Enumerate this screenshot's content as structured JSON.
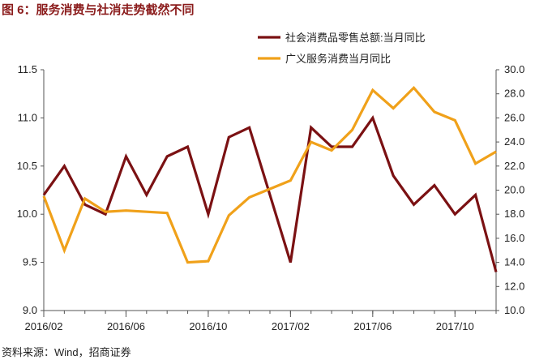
{
  "figure_title": "图 6：服务消费与社消走势截然不同",
  "source": "资料来源：Wind，招商证券",
  "chart_data": {
    "type": "line",
    "x": [
      "2016/02",
      "2016/03",
      "2016/04",
      "2016/05",
      "2016/06",
      "2016/07",
      "2016/08",
      "2016/09",
      "2016/10",
      "2016/11",
      "2016/12",
      "2017/01",
      "2017/02",
      "2017/03",
      "2017/04",
      "2017/05",
      "2017/06",
      "2017/07",
      "2017/08",
      "2017/09",
      "2017/10",
      "2017/11",
      "2017/12"
    ],
    "x_tick_labels": [
      "2016/02",
      "2016/06",
      "2016/10",
      "2017/02",
      "2017/06",
      "2017/10"
    ],
    "series": [
      {
        "name": "社会消费品零售总额:当月同比",
        "axis": "left",
        "color": "#7b1113",
        "values": [
          10.2,
          10.5,
          10.1,
          10.0,
          10.6,
          10.2,
          10.6,
          10.7,
          10.0,
          10.8,
          10.9,
          10.2,
          9.5,
          10.9,
          10.7,
          10.7,
          11.0,
          10.4,
          10.1,
          10.3,
          10.0,
          10.2,
          9.4
        ]
      },
      {
        "name": "广义服务消费当月同比",
        "axis": "right",
        "color": "#f0a11a",
        "values": [
          19.5,
          15.0,
          19.3,
          18.2,
          18.3,
          18.2,
          18.1,
          14.0,
          14.1,
          17.9,
          19.4,
          20.1,
          20.8,
          24.0,
          23.3,
          25.0,
          28.3,
          26.8,
          28.5,
          26.5,
          25.8,
          22.2,
          23.2
        ]
      }
    ],
    "left_axis": {
      "min": 9.0,
      "max": 11.5,
      "step": 0.5,
      "ticks": [
        "9.0",
        "9.5",
        "10.0",
        "10.5",
        "11.0",
        "11.5"
      ]
    },
    "right_axis": {
      "min": 10.0,
      "max": 30.0,
      "step": 2.0,
      "ticks": [
        "10.0",
        "12.0",
        "14.0",
        "16.0",
        "18.0",
        "20.0",
        "22.0",
        "24.0",
        "26.0",
        "28.0",
        "30.0"
      ]
    },
    "legend": [
      "社会消费品零售总额:当月同比",
      "广义服务消费当月同比"
    ],
    "legend_position": "top",
    "grid": false
  }
}
